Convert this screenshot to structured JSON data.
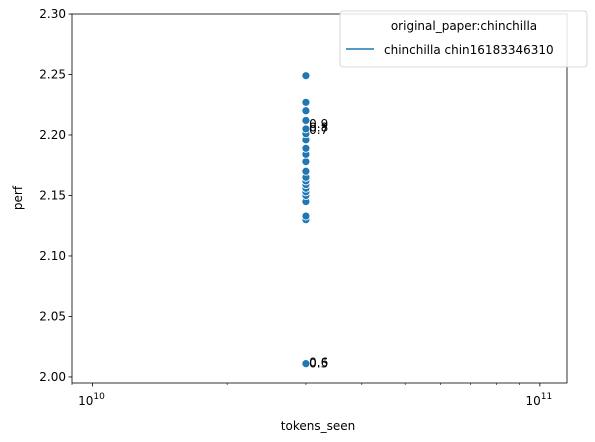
{
  "chart_data": {
    "type": "scatter",
    "xlabel": "tokens_seen",
    "ylabel": "perf",
    "x_scale": "log",
    "xlim": [
      9000000000,
      115000000000
    ],
    "ylim": [
      1.995,
      2.3
    ],
    "x_ticks": [
      {
        "value": 10000000000,
        "base": "10",
        "exp": "10"
      },
      {
        "value": 100000000000,
        "base": "10",
        "exp": "11"
      }
    ],
    "y_ticks": [
      2.0,
      2.05,
      2.1,
      2.15,
      2.2,
      2.25,
      2.3
    ],
    "y_tick_labels": [
      "2.00",
      "2.05",
      "2.10",
      "2.15",
      "2.20",
      "2.25",
      "2.30"
    ],
    "grid": false,
    "marker_color": "#1f77b4",
    "points": [
      {
        "x": 30000000000,
        "y": 2.011
      },
      {
        "x": 30000000000,
        "y": 2.13
      },
      {
        "x": 30000000000,
        "y": 2.133
      },
      {
        "x": 30000000000,
        "y": 2.145
      },
      {
        "x": 30000000000,
        "y": 2.15
      },
      {
        "x": 30000000000,
        "y": 2.153
      },
      {
        "x": 30000000000,
        "y": 2.156
      },
      {
        "x": 30000000000,
        "y": 2.159
      },
      {
        "x": 30000000000,
        "y": 2.162
      },
      {
        "x": 30000000000,
        "y": 2.165
      },
      {
        "x": 30000000000,
        "y": 2.17
      },
      {
        "x": 30000000000,
        "y": 2.178
      },
      {
        "x": 30000000000,
        "y": 2.184
      },
      {
        "x": 30000000000,
        "y": 2.189
      },
      {
        "x": 30000000000,
        "y": 2.196
      },
      {
        "x": 30000000000,
        "y": 2.201
      },
      {
        "x": 30000000000,
        "y": 2.205
      },
      {
        "x": 30000000000,
        "y": 2.212
      },
      {
        "x": 30000000000,
        "y": 2.22
      },
      {
        "x": 30000000000,
        "y": 2.227
      },
      {
        "x": 30000000000,
        "y": 2.249
      }
    ],
    "annotations": [
      {
        "text": "0.5",
        "x": 30500000000,
        "y": 2.011
      },
      {
        "text": "0.6",
        "x": 30500000000,
        "y": 2.012
      },
      {
        "text": "0.7",
        "x": 30500000000,
        "y": 2.204
      },
      {
        "text": "0.8",
        "x": 30500000000,
        "y": 2.206
      },
      {
        "text": "0.9",
        "x": 30500000000,
        "y": 2.209
      }
    ],
    "legend": {
      "position": "upper right",
      "title": "original_paper:chinchilla",
      "entries": [
        {
          "label": "chinchilla chin16183346310",
          "color": "#1f77b4",
          "marker": "line"
        }
      ]
    }
  }
}
